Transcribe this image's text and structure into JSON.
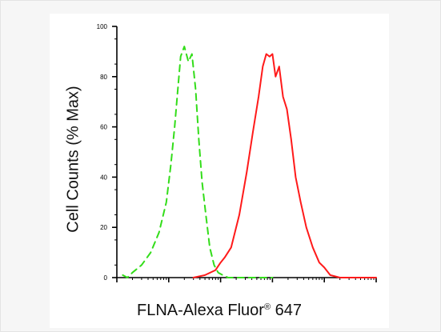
{
  "chart_data": {
    "type": "line",
    "xlabel_main": "FLNA-Alexa Fluor",
    "xlabel_sup": "®",
    "xlabel_tail": " 647",
    "ylabel": "Cell Counts (% Max)",
    "ylim": [
      0,
      100
    ],
    "yticks": [
      0,
      20,
      40,
      60,
      80,
      100
    ],
    "xscale": "log",
    "xlim": [
      1,
      100000
    ],
    "grid": false,
    "series": [
      {
        "style": "dashed",
        "color": "#33dd1a",
        "x": [
          1.3,
          1.6,
          2.0,
          3.0,
          4.5,
          6.5,
          9,
          11,
          13,
          15,
          17,
          20,
          24,
          28,
          33,
          38,
          44,
          52,
          62,
          75,
          90,
          110,
          140,
          200,
          400,
          1000
        ],
        "y": [
          1,
          0,
          2,
          5,
          10,
          18,
          30,
          45,
          60,
          75,
          88,
          92,
          86,
          89,
          75,
          55,
          38,
          25,
          12,
          5,
          2,
          1,
          0,
          0,
          0,
          0
        ]
      },
      {
        "style": "solid",
        "color": "#ff1a1a",
        "x": [
          30,
          50,
          80,
          100,
          120,
          160,
          230,
          320,
          420,
          540,
          650,
          760,
          880,
          1000,
          1150,
          1350,
          1600,
          1900,
          2300,
          2800,
          3500,
          4500,
          6000,
          8000,
          10000,
          13000,
          20000,
          40000,
          100000
        ],
        "y": [
          0,
          1,
          3,
          6,
          8,
          12,
          25,
          42,
          58,
          72,
          84,
          89,
          88,
          89,
          80,
          84,
          72,
          67,
          55,
          40,
          30,
          20,
          12,
          6,
          4,
          1,
          0,
          0,
          0
        ]
      }
    ]
  }
}
